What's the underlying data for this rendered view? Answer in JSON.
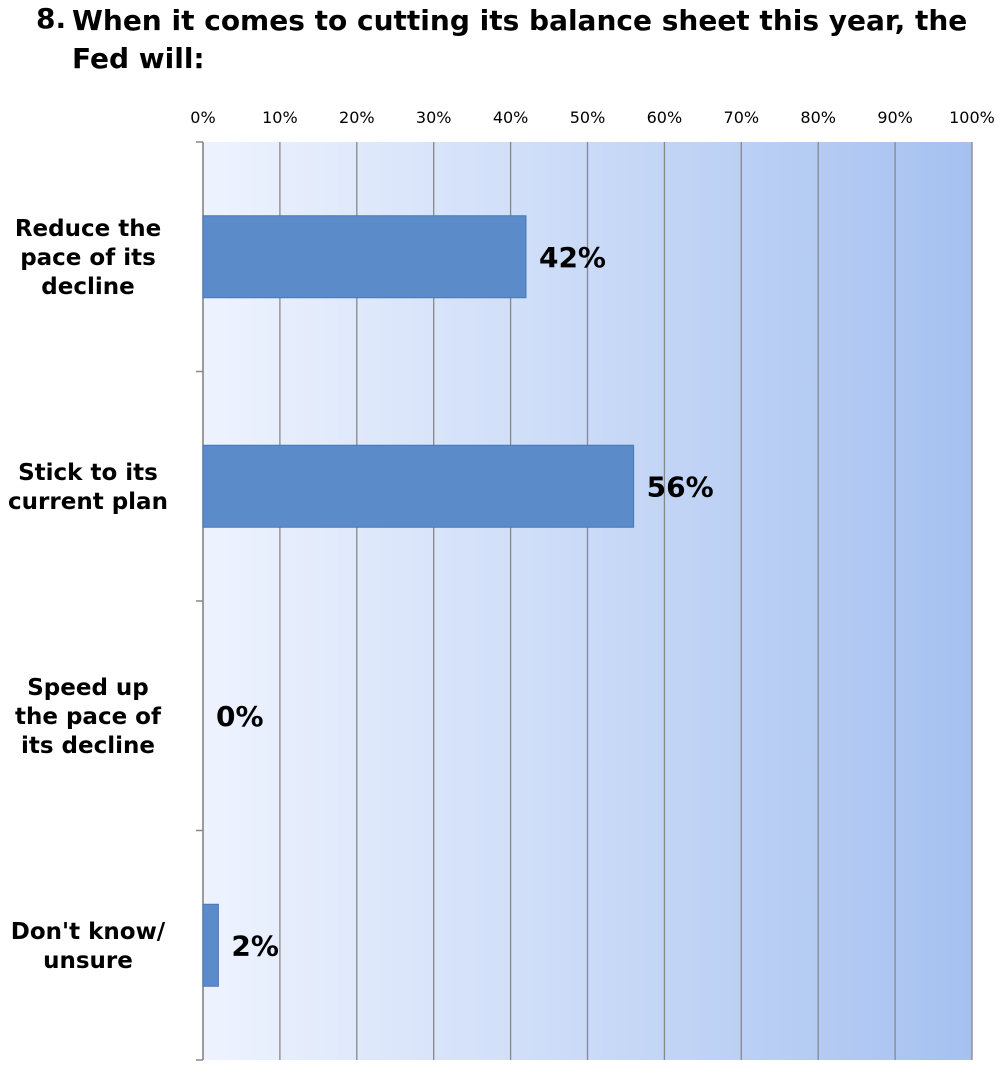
{
  "title": {
    "number": "8.",
    "text": "When it comes to cutting its balance sheet this year, the Fed will:"
  },
  "colors": {
    "bar": "#5b8bc9",
    "bar_stroke": "#4a78b5",
    "gradient_start": "#eef3fe",
    "gradient_end": "#a6c1f0",
    "gridline": "#888888"
  },
  "chart_data": {
    "type": "bar",
    "orientation": "horizontal",
    "categories": [
      [
        "Reduce the",
        "pace of its",
        "decline"
      ],
      [
        "Stick to its",
        "current plan"
      ],
      [
        "Speed up",
        "the pace of",
        "its decline"
      ],
      [
        "Don't know/",
        "unsure"
      ]
    ],
    "values": [
      42,
      56,
      0,
      2
    ],
    "data_labels": [
      "42%",
      "56%",
      "0%",
      "2%"
    ],
    "xlim": [
      0,
      100
    ],
    "x_ticks": [
      "0%",
      "10%",
      "20%",
      "30%",
      "40%",
      "50%",
      "60%",
      "70%",
      "80%",
      "90%",
      "100%"
    ],
    "x_axis_position": "top",
    "grid": true,
    "legend": "none"
  }
}
